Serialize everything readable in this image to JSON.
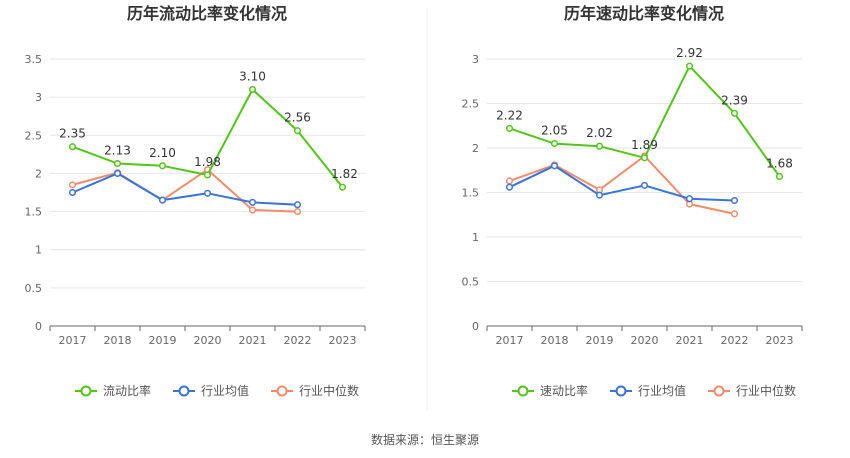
{
  "source_note": "数据来源：恒生聚源",
  "colors": {
    "primary": "#52c41a",
    "industry_avg": "#3b72d9",
    "industry_median": "#f08c6c",
    "grid": "#e6e6e6",
    "axis": "#666666",
    "divider": "#eeeeee"
  },
  "chart_data": [
    {
      "type": "line",
      "title": "历年流动比率变化情况",
      "categories": [
        "2017",
        "2018",
        "2019",
        "2020",
        "2021",
        "2022",
        "2023"
      ],
      "ylim": [
        0,
        3.5
      ],
      "yticks": [
        "0",
        "0.5",
        "1",
        "1.5",
        "2",
        "2.5",
        "3",
        "3.5"
      ],
      "grid": true,
      "legend_position": "bottom",
      "series": [
        {
          "name": "流动比率",
          "role": "primary",
          "values": [
            2.35,
            2.13,
            2.1,
            1.98,
            3.1,
            2.56,
            1.82
          ],
          "labels": [
            "2.35",
            "2.13",
            "2.10",
            "1.98",
            "3.10",
            "2.56",
            "1.82"
          ]
        },
        {
          "name": "行业均值",
          "role": "industry_avg",
          "values": [
            1.75,
            2.0,
            1.65,
            1.74,
            1.62,
            1.59,
            null
          ]
        },
        {
          "name": "行业中位数",
          "role": "industry_median",
          "values": [
            1.85,
            2.01,
            1.65,
            2.05,
            1.52,
            1.5,
            null
          ]
        }
      ]
    },
    {
      "type": "line",
      "title": "历年速动比率变化情况",
      "categories": [
        "2017",
        "2018",
        "2019",
        "2020",
        "2021",
        "2022",
        "2023"
      ],
      "ylim": [
        0,
        3
      ],
      "yticks": [
        "0",
        "0.5",
        "1",
        "1.5",
        "2",
        "2.5",
        "3"
      ],
      "grid": true,
      "legend_position": "bottom",
      "series": [
        {
          "name": "速动比率",
          "role": "primary",
          "values": [
            2.22,
            2.05,
            2.02,
            1.89,
            2.92,
            2.39,
            1.68
          ],
          "labels": [
            "2.22",
            "2.05",
            "2.02",
            "1.89",
            "2.92",
            "2.39",
            "1.68"
          ]
        },
        {
          "name": "行业均值",
          "role": "industry_avg",
          "values": [
            1.56,
            1.8,
            1.47,
            1.58,
            1.43,
            1.41,
            null
          ]
        },
        {
          "name": "行业中位数",
          "role": "industry_median",
          "values": [
            1.63,
            1.81,
            1.53,
            1.91,
            1.37,
            1.26,
            null
          ]
        }
      ]
    }
  ]
}
